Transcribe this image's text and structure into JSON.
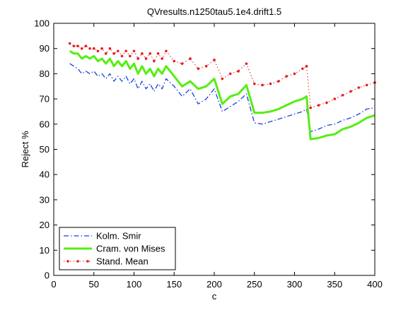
{
  "chart_data": {
    "type": "line",
    "title": "QVresults.n1250tau5.1e4.drift1.5",
    "xlabel": "c",
    "ylabel": "Reject %",
    "xlim": [
      0,
      400
    ],
    "ylim": [
      0,
      100
    ],
    "xticks": [
      0,
      50,
      100,
      150,
      200,
      250,
      300,
      350,
      400
    ],
    "yticks": [
      0,
      10,
      20,
      30,
      40,
      50,
      60,
      70,
      80,
      90,
      100
    ],
    "grid": false,
    "legend_position": "bottom-left",
    "series": [
      {
        "name": "Kolm. Smir",
        "color": "#1a3fe0",
        "style": "dash-dot",
        "x": [
          20,
          25,
          30,
          35,
          40,
          45,
          50,
          55,
          60,
          65,
          70,
          75,
          80,
          85,
          90,
          95,
          100,
          105,
          110,
          115,
          120,
          125,
          130,
          135,
          140,
          150,
          160,
          170,
          180,
          190,
          200,
          210,
          220,
          230,
          240,
          250,
          260,
          270,
          280,
          290,
          300,
          310,
          315,
          320,
          330,
          340,
          350,
          360,
          370,
          380,
          390,
          400
        ],
        "y": [
          84,
          83,
          82,
          80,
          81,
          80,
          81,
          79,
          80,
          78,
          80,
          77,
          79,
          77,
          79,
          76,
          78,
          74,
          77,
          74,
          76,
          73,
          76,
          74,
          78,
          75,
          71,
          74,
          68,
          70,
          74,
          65,
          67,
          69,
          72,
          60.5,
          60,
          61,
          62,
          63,
          64,
          65,
          66,
          57,
          58,
          59.5,
          60,
          61.5,
          62.5,
          64,
          66,
          66.5
        ]
      },
      {
        "name": "Cram. von Mises",
        "color": "#55ee11",
        "style": "solid",
        "x": [
          20,
          25,
          30,
          35,
          40,
          45,
          50,
          55,
          60,
          65,
          70,
          75,
          80,
          85,
          90,
          95,
          100,
          105,
          110,
          115,
          120,
          125,
          130,
          135,
          140,
          150,
          160,
          170,
          180,
          190,
          200,
          210,
          220,
          230,
          240,
          250,
          260,
          270,
          280,
          290,
          300,
          310,
          315,
          320,
          330,
          340,
          350,
          360,
          370,
          380,
          390,
          400
        ],
        "y": [
          89,
          88,
          88,
          86,
          87,
          86,
          87,
          85,
          86,
          84,
          86,
          83,
          85,
          83,
          85,
          82,
          84,
          80,
          83,
          80,
          82,
          79,
          82,
          80,
          83,
          79,
          75,
          77,
          74,
          75,
          78,
          68,
          71,
          72,
          75.5,
          64.5,
          64.5,
          65,
          66,
          67.5,
          69,
          70,
          71,
          54,
          54.5,
          55.5,
          56,
          58,
          59,
          60.5,
          62.5,
          63.5
        ]
      },
      {
        "name": "Stand. Mean",
        "color": "#e81a1a",
        "style": "dotted-markers",
        "x": [
          20,
          25,
          30,
          35,
          40,
          45,
          50,
          55,
          60,
          65,
          70,
          75,
          80,
          85,
          90,
          95,
          100,
          105,
          110,
          115,
          120,
          125,
          130,
          135,
          140,
          150,
          160,
          170,
          180,
          190,
          200,
          210,
          220,
          230,
          240,
          250,
          260,
          270,
          280,
          290,
          300,
          310,
          315,
          320,
          330,
          340,
          350,
          360,
          370,
          380,
          390,
          400
        ],
        "y": [
          92,
          91,
          91,
          90,
          91,
          90,
          90,
          89,
          90,
          88,
          90,
          88,
          89,
          87,
          89,
          87,
          89,
          86,
          88,
          86,
          88,
          85,
          88,
          86,
          89,
          85,
          84,
          86,
          82,
          83,
          85.5,
          78,
          80,
          81,
          84,
          76,
          75.5,
          76,
          77,
          79,
          80,
          82,
          83,
          66.5,
          67.5,
          68.5,
          70,
          71.5,
          73,
          74.5,
          75.5,
          76.5
        ]
      }
    ]
  }
}
